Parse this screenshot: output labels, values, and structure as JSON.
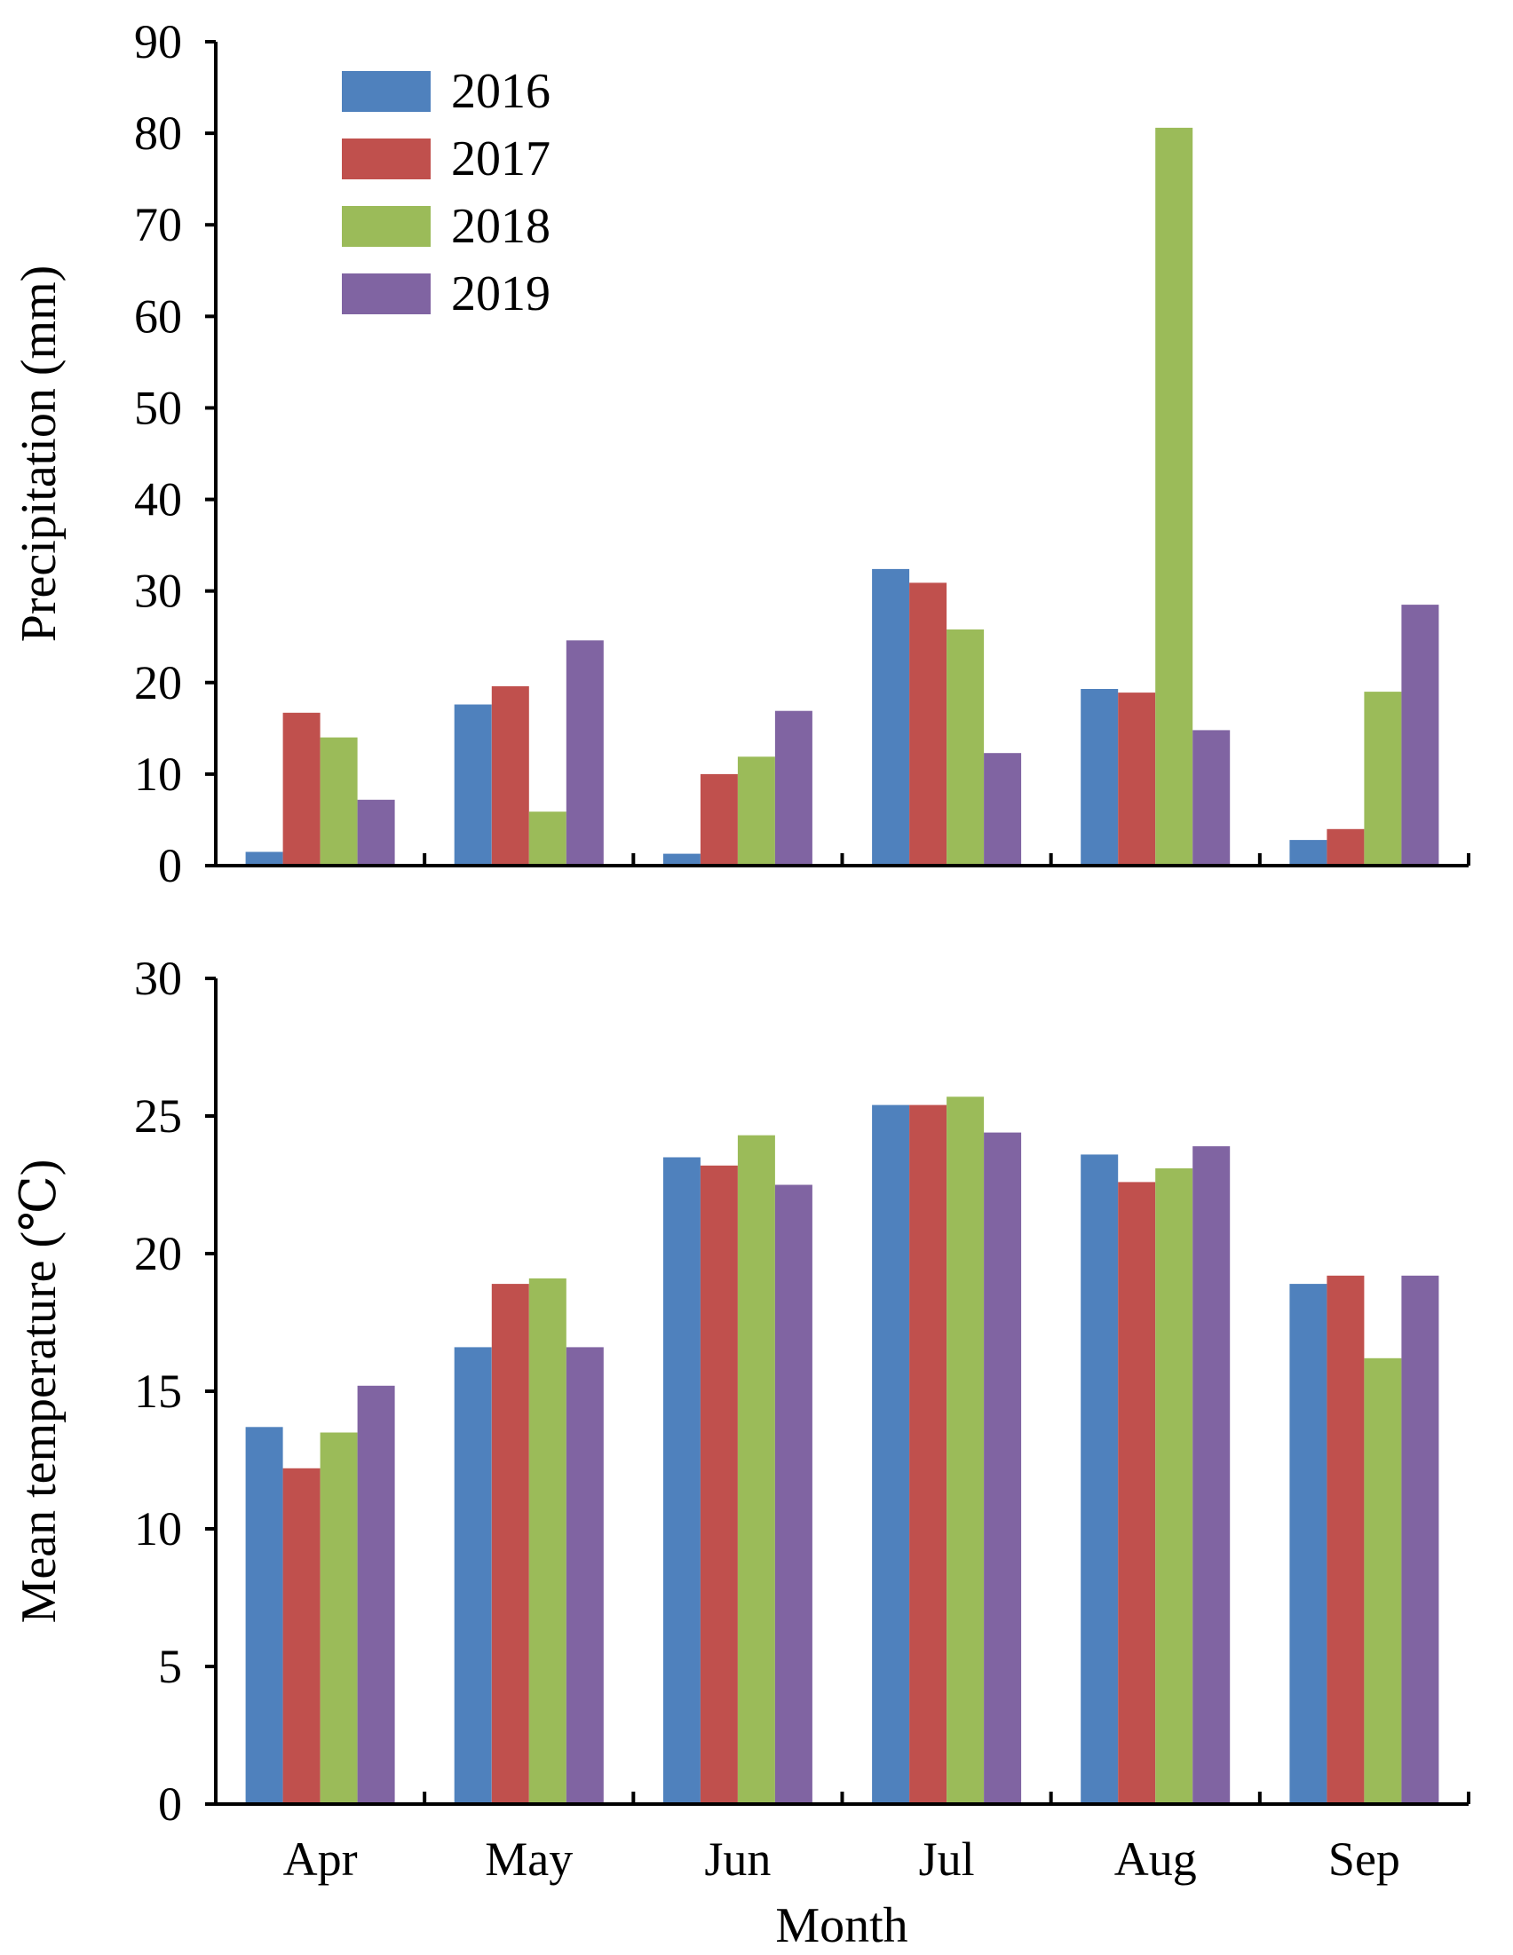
{
  "legend": {
    "years": [
      "2016",
      "2017",
      "2018",
      "2019"
    ],
    "colors": [
      "#4f81bd",
      "#c0504d",
      "#9bbb59",
      "#8064a2"
    ]
  },
  "chart_data": [
    {
      "type": "bar",
      "categories": [
        "Apr",
        "May",
        "Jun",
        "Jul",
        "Aug",
        "Sep"
      ],
      "series": [
        {
          "name": "2016",
          "values": [
            1.5,
            17.6,
            1.3,
            32.4,
            19.3,
            2.8
          ]
        },
        {
          "name": "2017",
          "values": [
            16.7,
            19.6,
            10.0,
            30.9,
            18.9,
            4.0
          ]
        },
        {
          "name": "2018",
          "values": [
            14.0,
            5.9,
            11.9,
            25.8,
            80.6,
            19.0
          ]
        },
        {
          "name": "2019",
          "values": [
            7.2,
            24.6,
            16.9,
            12.3,
            14.8,
            28.5
          ]
        }
      ],
      "title": "",
      "xlabel": "",
      "ylabel": "Precipitation (mm)",
      "ylim": [
        0,
        90
      ],
      "yticks": [
        "0",
        "10",
        "20",
        "30",
        "40",
        "50",
        "60",
        "70",
        "80",
        "90"
      ],
      "legend": "top-left",
      "grid": false
    },
    {
      "type": "bar",
      "categories": [
        "Apr",
        "May",
        "Jun",
        "Jul",
        "Aug",
        "Sep"
      ],
      "series": [
        {
          "name": "2016",
          "values": [
            13.7,
            16.6,
            23.5,
            25.4,
            23.6,
            18.9
          ]
        },
        {
          "name": "2017",
          "values": [
            12.2,
            18.9,
            23.2,
            25.4,
            22.6,
            19.2
          ]
        },
        {
          "name": "2018",
          "values": [
            13.5,
            19.1,
            24.3,
            25.7,
            23.1,
            16.2
          ]
        },
        {
          "name": "2019",
          "values": [
            15.2,
            16.6,
            22.5,
            24.4,
            23.9,
            19.2
          ]
        }
      ],
      "title": "",
      "xlabel": "Month",
      "ylabel": "Mean temperature (℃)",
      "ylim": [
        0,
        30
      ],
      "yticks": [
        "0",
        "5",
        "10",
        "15",
        "20",
        "25",
        "30"
      ],
      "grid": false
    }
  ]
}
